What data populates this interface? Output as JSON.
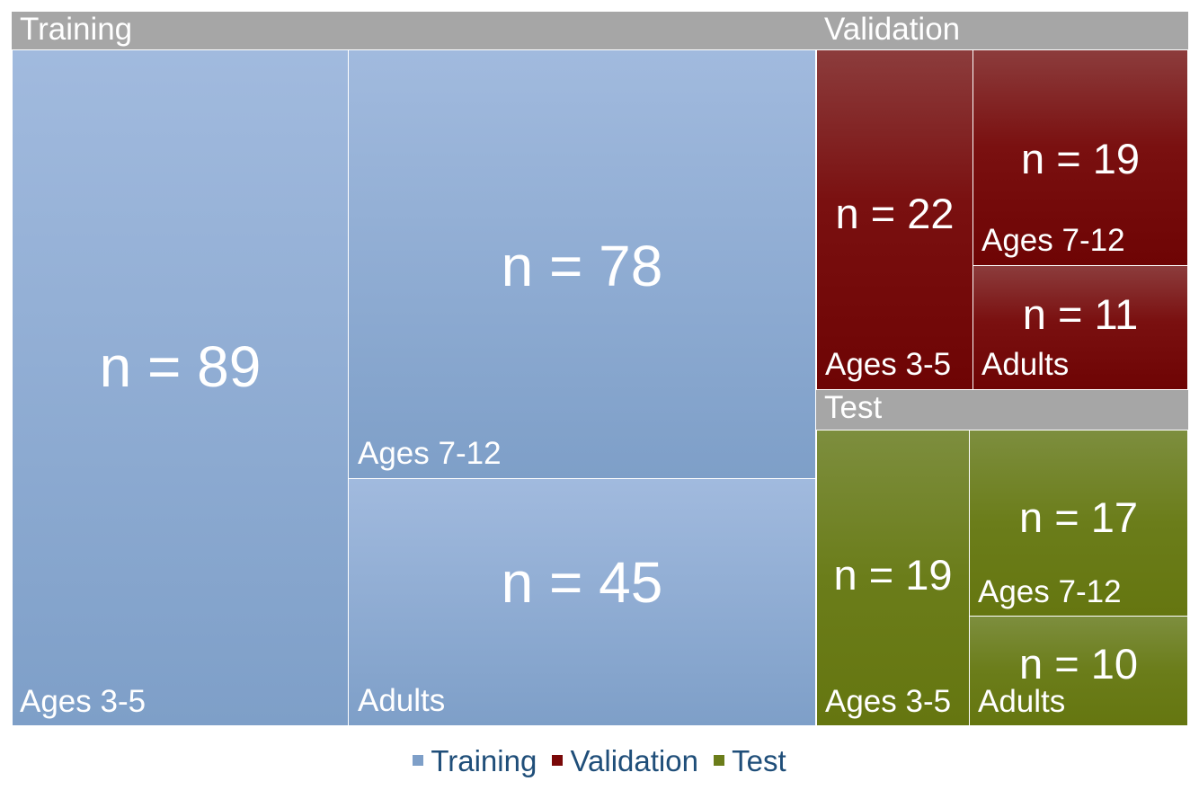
{
  "chart_data": {
    "type": "treemap",
    "title": "",
    "groups": [
      {
        "name": "Training",
        "color": "#7e9fc8",
        "items": [
          {
            "label": "Ages 3-5",
            "value": 89,
            "value_text": "n = 89"
          },
          {
            "label": "Ages 7-12",
            "value": 78,
            "value_text": "n = 78"
          },
          {
            "label": "Adults",
            "value": 45,
            "value_text": "n = 45"
          }
        ]
      },
      {
        "name": "Validation",
        "color": "#6e0404",
        "items": [
          {
            "label": "Ages 3-5",
            "value": 22,
            "value_text": "n = 22"
          },
          {
            "label": "Ages 7-12",
            "value": 19,
            "value_text": "n = 19"
          },
          {
            "label": "Adults",
            "value": 11,
            "value_text": "n = 11"
          }
        ]
      },
      {
        "name": "Test",
        "color": "#657610",
        "items": [
          {
            "label": "Ages 3-5",
            "value": 19,
            "value_text": "n = 19"
          },
          {
            "label": "Ages 7-12",
            "value": 17,
            "value_text": "n = 17"
          },
          {
            "label": "Adults",
            "value": 10,
            "value_text": "n = 10"
          }
        ]
      }
    ],
    "legend": [
      "Training",
      "Validation",
      "Test"
    ],
    "legend_position": "bottom"
  }
}
